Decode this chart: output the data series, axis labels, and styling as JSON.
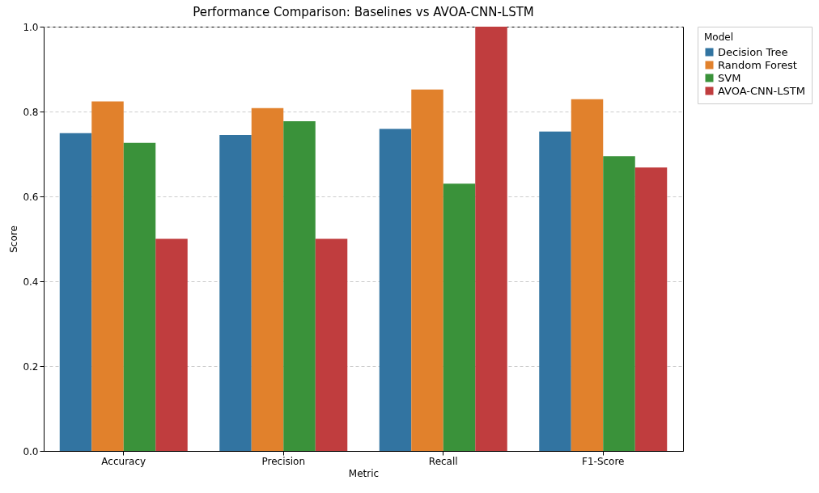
{
  "chart_data": {
    "type": "bar",
    "title": "Performance Comparison: Baselines vs AVOA-CNN-LSTM",
    "xlabel": "Metric",
    "ylabel": "Score",
    "legend_title": "Model",
    "categories": [
      "Accuracy",
      "Precision",
      "Recall",
      "F1-Score"
    ],
    "series": [
      {
        "name": "Decision Tree",
        "color": "#3274a1",
        "values": [
          0.749,
          0.745,
          0.759,
          0.753
        ]
      },
      {
        "name": "Random Forest",
        "color": "#e1812c",
        "values": [
          0.824,
          0.808,
          0.852,
          0.829
        ]
      },
      {
        "name": "SVM",
        "color": "#3a923a",
        "values": [
          0.726,
          0.777,
          0.63,
          0.695
        ]
      },
      {
        "name": "AVOA-CNN-LSTM",
        "color": "#c03d3e",
        "values": [
          0.5,
          0.5,
          1.0,
          0.668
        ]
      }
    ],
    "ylim": [
      0,
      1
    ],
    "yticks": [
      {
        "value": 0,
        "label": "0.0"
      },
      0.2,
      0.4,
      0.6,
      0.8,
      {
        "value": 1,
        "label": "1.0"
      }
    ],
    "grid": "y",
    "legend": "top right"
  }
}
